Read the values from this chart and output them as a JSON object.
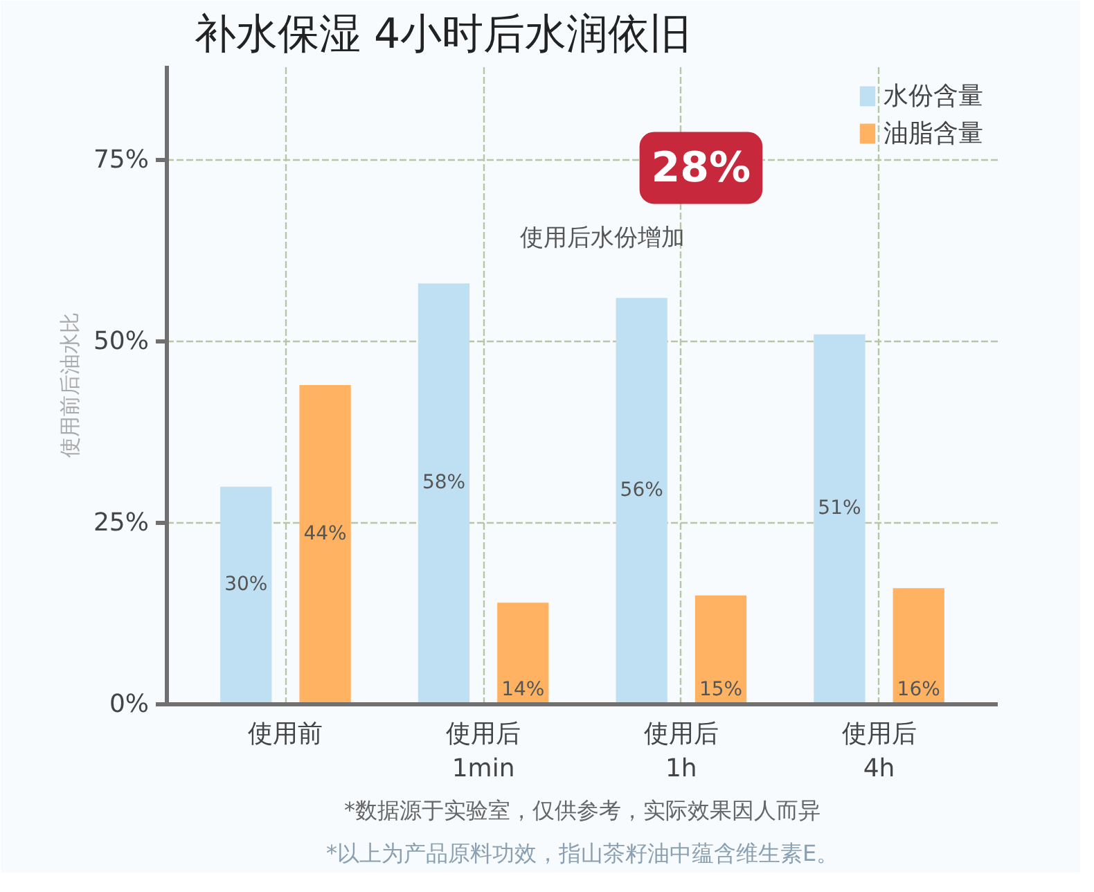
{
  "chart_data": {
    "type": "bar",
    "title": "补水保湿",
    "subtitle": "4小时后水润依旧",
    "ylabel": "使用前后油水比",
    "categories": [
      "使用前",
      "使用后\n1min",
      "使用后\n1h",
      "使用后\n4h"
    ],
    "series": [
      {
        "name": "水份含量",
        "color": "#bfdff2",
        "values": [
          30,
          58,
          56,
          51
        ],
        "value_labels": [
          "30%",
          "58%",
          "56%",
          "51%"
        ]
      },
      {
        "name": "油脂含量",
        "color": "#ffb362",
        "values": [
          44,
          14,
          15,
          16
        ],
        "value_labels": [
          "44%",
          "14%",
          "15%",
          "16%"
        ]
      }
    ],
    "ylim": [
      0,
      88
    ],
    "yticks": [
      {
        "value": 0,
        "label": "0%"
      },
      {
        "value": 25,
        "label": "25%"
      },
      {
        "value": 50,
        "label": "50%"
      },
      {
        "value": 75,
        "label": "75%"
      }
    ],
    "grid": true,
    "legend": "top right",
    "annotations": [
      "28%",
      "使用后水份增加",
      "*数据源于实验室，仅供参考，实际效果因人而异",
      "*以上为产品原料功效，指山茶籽油中蕴含维生素E。"
    ]
  }
}
